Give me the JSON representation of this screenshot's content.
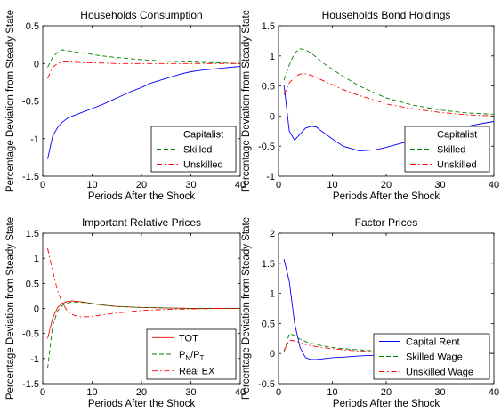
{
  "chart_data": [
    {
      "type": "line",
      "title": "Households Consumption",
      "xlabel": "Periods After the Shock",
      "ylabel": "Percentage Deviation from Steady State",
      "xlim": [
        0,
        40
      ],
      "ylim": [
        -1.5,
        0.5
      ],
      "xticks": [
        0,
        10,
        20,
        30,
        40
      ],
      "yticks": [
        -1.5,
        -1,
        -0.5,
        0,
        0.5
      ],
      "xtick_labels": [
        "0",
        "10",
        "20",
        "30",
        "40"
      ],
      "ytick_labels": [
        "-1.5",
        "-1",
        "-0.5",
        "0",
        "0.5"
      ],
      "legend_position": "bottom-right",
      "series": [
        {
          "name": "Capitalist",
          "color": "#0000ff",
          "dash": "solid",
          "x": [
            1,
            2,
            3,
            4,
            5,
            6,
            8,
            10,
            12,
            15,
            18,
            20,
            22,
            25,
            28,
            30,
            32,
            35,
            38,
            40
          ],
          "y": [
            -1.27,
            -0.97,
            -0.85,
            -0.78,
            -0.73,
            -0.7,
            -0.65,
            -0.6,
            -0.55,
            -0.46,
            -0.37,
            -0.32,
            -0.26,
            -0.2,
            -0.14,
            -0.11,
            -0.09,
            -0.07,
            -0.05,
            -0.04
          ]
        },
        {
          "name": "Skilled",
          "color": "#008000",
          "dash": "dashed",
          "x": [
            1,
            2,
            3,
            4,
            5,
            6,
            8,
            10,
            12,
            15,
            20,
            25,
            30,
            35,
            40
          ],
          "y": [
            -0.05,
            0.08,
            0.15,
            0.18,
            0.17,
            0.16,
            0.14,
            0.12,
            0.1,
            0.08,
            0.05,
            0.03,
            0.02,
            0.01,
            0.0
          ]
        },
        {
          "name": "Unskilled",
          "color": "#ff0000",
          "dash": "dashdot",
          "x": [
            1,
            2,
            3,
            4,
            5,
            6,
            8,
            10,
            15,
            20,
            25,
            30,
            35,
            40
          ],
          "y": [
            -0.2,
            -0.05,
            0.0,
            0.02,
            0.02,
            0.02,
            0.01,
            0.01,
            0.0,
            0.0,
            0.0,
            0.0,
            0.0,
            0.0
          ]
        }
      ]
    },
    {
      "type": "line",
      "title": "Households Bond Holdings",
      "xlabel": "Periods After the Shock",
      "ylabel": "Percentage Deviation from Steady State",
      "xlim": [
        0,
        40
      ],
      "ylim": [
        -1,
        1.5
      ],
      "xticks": [
        0,
        10,
        20,
        30,
        40
      ],
      "yticks": [
        -1,
        -0.5,
        0,
        0.5,
        1,
        1.5
      ],
      "xtick_labels": [
        "0",
        "10",
        "20",
        "30",
        "40"
      ],
      "ytick_labels": [
        "-1",
        "-0.5",
        "0",
        "0.5",
        "1",
        "1.5"
      ],
      "legend_position": "bottom-right",
      "series": [
        {
          "name": "Capitalist",
          "color": "#0000ff",
          "dash": "solid",
          "x": [
            1,
            2,
            3,
            4,
            5,
            6,
            7,
            8,
            10,
            12,
            15,
            18,
            20,
            22,
            25,
            28,
            30,
            32,
            35,
            38,
            40
          ],
          "y": [
            0.52,
            -0.25,
            -0.4,
            -0.3,
            -0.2,
            -0.17,
            -0.18,
            -0.25,
            -0.38,
            -0.5,
            -0.58,
            -0.56,
            -0.52,
            -0.47,
            -0.4,
            -0.32,
            -0.27,
            -0.22,
            -0.17,
            -0.12,
            -0.09
          ]
        },
        {
          "name": "Skilled",
          "color": "#008000",
          "dash": "dashed",
          "x": [
            1,
            2,
            3,
            4,
            5,
            6,
            7,
            8,
            10,
            12,
            15,
            18,
            20,
            25,
            30,
            35,
            40
          ],
          "y": [
            0.6,
            0.85,
            1.05,
            1.12,
            1.1,
            1.05,
            0.98,
            0.9,
            0.78,
            0.66,
            0.5,
            0.38,
            0.3,
            0.18,
            0.1,
            0.05,
            0.03
          ]
        },
        {
          "name": "Unskilled",
          "color": "#ff0000",
          "dash": "dashdot",
          "x": [
            1,
            2,
            3,
            4,
            5,
            6,
            7,
            8,
            10,
            12,
            15,
            18,
            20,
            25,
            30,
            35,
            40
          ],
          "y": [
            0.35,
            0.55,
            0.65,
            0.7,
            0.7,
            0.68,
            0.65,
            0.6,
            0.52,
            0.44,
            0.34,
            0.26,
            0.2,
            0.12,
            0.06,
            0.02,
            0.0
          ]
        }
      ]
    },
    {
      "type": "line",
      "title": "Important Relative Prices",
      "xlabel": "Periods After the Shock",
      "ylabel": "Percentage Deviation from Steady State",
      "xlim": [
        0,
        40
      ],
      "ylim": [
        -1.5,
        1.5
      ],
      "xticks": [
        0,
        10,
        20,
        30,
        40
      ],
      "yticks": [
        -1.5,
        -1,
        -0.5,
        0,
        0.5,
        1,
        1.5
      ],
      "xtick_labels": [
        "0",
        "10",
        "20",
        "30",
        "40"
      ],
      "ytick_labels": [
        "-1.5",
        "-1",
        "-0.5",
        "0",
        "0.5",
        "1",
        "1.5"
      ],
      "legend_position": "bottom-right",
      "series": [
        {
          "name": "TOT",
          "color": "#ff0000",
          "dash": "solid",
          "x": [
            1,
            2,
            3,
            4,
            5,
            6,
            8,
            10,
            12,
            15,
            20,
            25,
            30,
            35,
            40
          ],
          "y": [
            -0.6,
            -0.2,
            0.02,
            0.1,
            0.14,
            0.15,
            0.13,
            0.1,
            0.07,
            0.04,
            0.02,
            0.01,
            0.0,
            0.0,
            0.0
          ]
        },
        {
          "name": "P<sub>N</sub>/P<sub>T</sub>",
          "color": "#008000",
          "dash": "dashed",
          "x": [
            1,
            2,
            3,
            4,
            5,
            6,
            8,
            10,
            12,
            15,
            20,
            25,
            30,
            35,
            40
          ],
          "y": [
            -1.2,
            -0.35,
            -0.05,
            0.06,
            0.11,
            0.13,
            0.12,
            0.1,
            0.07,
            0.04,
            0.02,
            0.01,
            0.0,
            0.0,
            0.0
          ]
        },
        {
          "name": "Real EX",
          "color": "#ff0000",
          "dash": "dashdot",
          "x": [
            1,
            2,
            3,
            4,
            5,
            6,
            7,
            8,
            10,
            12,
            15,
            20,
            25,
            30,
            35,
            40
          ],
          "y": [
            1.2,
            0.75,
            0.35,
            0.1,
            -0.05,
            -0.12,
            -0.16,
            -0.17,
            -0.16,
            -0.13,
            -0.09,
            -0.04,
            -0.02,
            -0.01,
            0.0,
            0.0
          ]
        }
      ]
    },
    {
      "type": "line",
      "title": "Factor Prices",
      "xlabel": "Periods After the Shock",
      "ylabel": "Percentage Deviation from Steady State",
      "xlim": [
        0,
        40
      ],
      "ylim": [
        -0.5,
        2
      ],
      "xticks": [
        0,
        10,
        20,
        30,
        40
      ],
      "yticks": [
        -0.5,
        0,
        0.5,
        1,
        1.5,
        2
      ],
      "xtick_labels": [
        "0",
        "10",
        "20",
        "30",
        "40"
      ],
      "ytick_labels": [
        "-0.5",
        "0",
        "0.5",
        "1",
        "1.5",
        "2"
      ],
      "legend_position": "bottom-right",
      "series": [
        {
          "name": "Capital Rent",
          "color": "#0000ff",
          "dash": "solid",
          "x": [
            1,
            2,
            3,
            4,
            5,
            6,
            7,
            8,
            10,
            12,
            15,
            18,
            20,
            25,
            30,
            35,
            40
          ],
          "y": [
            1.57,
            1.2,
            0.5,
            0.1,
            -0.07,
            -0.1,
            -0.1,
            -0.09,
            -0.07,
            -0.06,
            -0.04,
            -0.03,
            -0.02,
            -0.01,
            0.0,
            0.0,
            0.0
          ]
        },
        {
          "name": "Skilled Wage",
          "color": "#008000",
          "dash": "dashed",
          "x": [
            1,
            2,
            3,
            4,
            5,
            6,
            8,
            10,
            12,
            15,
            20,
            25,
            30,
            35,
            40
          ],
          "y": [
            0.02,
            0.33,
            0.3,
            0.24,
            0.2,
            0.17,
            0.13,
            0.1,
            0.08,
            0.06,
            0.03,
            0.02,
            0.01,
            0.0,
            0.0
          ]
        },
        {
          "name": "Unskilled Wage",
          "color": "#ff0000",
          "dash": "dashdot",
          "x": [
            1,
            2,
            3,
            4,
            5,
            6,
            8,
            10,
            12,
            15,
            20,
            25,
            30,
            35,
            40
          ],
          "y": [
            0.05,
            0.22,
            0.21,
            0.18,
            0.15,
            0.13,
            0.1,
            0.08,
            0.06,
            0.04,
            0.02,
            0.01,
            0.0,
            0.0,
            0.0
          ]
        }
      ]
    }
  ]
}
